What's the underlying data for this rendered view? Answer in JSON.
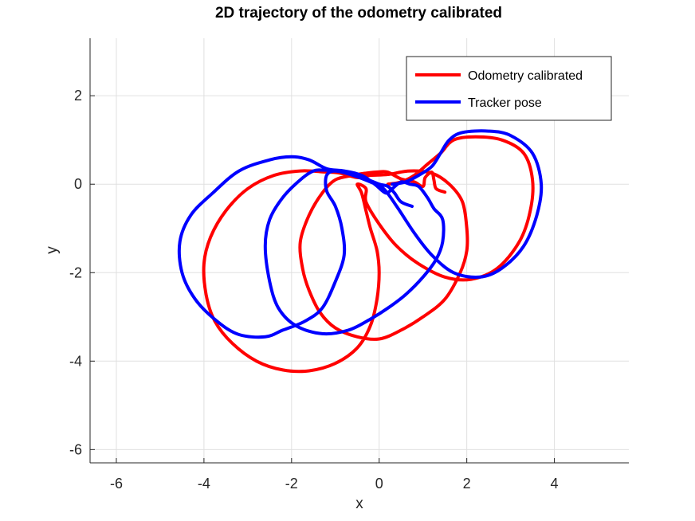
{
  "chart_data": {
    "type": "line",
    "title": "2D trajectory of the odometry calibrated",
    "xlabel": "x",
    "ylabel": "y",
    "xlim": [
      -6.6,
      5.7
    ],
    "ylim": [
      -6.3,
      3.3
    ],
    "xticks": [
      -6,
      -4,
      -2,
      0,
      2,
      4
    ],
    "yticks": [
      -6,
      -4,
      -2,
      0,
      2
    ],
    "xtick_labels": [
      "-6",
      "-4",
      "-2",
      "0",
      "2",
      "4"
    ],
    "ytick_labels": [
      "-6",
      "-4",
      "-2",
      "0",
      "2"
    ],
    "grid": true,
    "legend_position": "top-right",
    "series": [
      {
        "name": "Odometry calibrated",
        "color": "#ff0000",
        "points": [
          [
            1.5,
            -0.18
          ],
          [
            1.3,
            -0.1
          ],
          [
            1.25,
            0.1
          ],
          [
            1.2,
            0.27
          ],
          [
            1.05,
            0.15
          ],
          [
            1.0,
            -0.05
          ],
          [
            0.8,
            0.05
          ],
          [
            0.5,
            0.12
          ],
          [
            0.2,
            0.27
          ],
          [
            0.0,
            0.28
          ],
          [
            -0.3,
            0.25
          ],
          [
            -0.6,
            0.2
          ],
          [
            -1.0,
            0.1
          ],
          [
            -1.3,
            -0.2
          ],
          [
            -1.6,
            -0.7
          ],
          [
            -1.8,
            -1.3
          ],
          [
            -1.75,
            -1.9
          ],
          [
            -1.6,
            -2.4
          ],
          [
            -1.35,
            -2.9
          ],
          [
            -1.0,
            -3.25
          ],
          [
            -0.5,
            -3.45
          ],
          [
            0.0,
            -3.5
          ],
          [
            0.5,
            -3.3
          ],
          [
            1.0,
            -3.0
          ],
          [
            1.5,
            -2.6
          ],
          [
            1.85,
            -2.0
          ],
          [
            2.0,
            -1.5
          ],
          [
            2.0,
            -1.0
          ],
          [
            1.9,
            -0.4
          ],
          [
            1.6,
            0.0
          ],
          [
            1.2,
            0.25
          ],
          [
            0.7,
            0.3
          ],
          [
            0.2,
            0.22
          ],
          [
            -0.2,
            0.2
          ],
          [
            -0.5,
            0.15
          ],
          [
            -0.9,
            0.25
          ],
          [
            -1.3,
            0.28
          ],
          [
            -1.8,
            0.3
          ],
          [
            -2.4,
            0.2
          ],
          [
            -3.0,
            -0.1
          ],
          [
            -3.5,
            -0.6
          ],
          [
            -3.85,
            -1.2
          ],
          [
            -4.0,
            -1.8
          ],
          [
            -3.95,
            -2.5
          ],
          [
            -3.75,
            -3.1
          ],
          [
            -3.35,
            -3.6
          ],
          [
            -2.8,
            -4.0
          ],
          [
            -2.2,
            -4.2
          ],
          [
            -1.6,
            -4.22
          ],
          [
            -1.0,
            -4.05
          ],
          [
            -0.5,
            -3.7
          ],
          [
            -0.2,
            -3.2
          ],
          [
            -0.05,
            -2.6
          ],
          [
            0.0,
            -2.0
          ],
          [
            -0.05,
            -1.5
          ],
          [
            -0.2,
            -1.0
          ],
          [
            -0.3,
            -0.6
          ],
          [
            -0.4,
            -0.2
          ],
          [
            -0.5,
            0.0
          ],
          [
            -0.3,
            -0.1
          ],
          [
            -0.3,
            -0.4
          ],
          [
            0.0,
            -0.9
          ],
          [
            0.4,
            -1.4
          ],
          [
            0.9,
            -1.8
          ],
          [
            1.5,
            -2.1
          ],
          [
            2.1,
            -2.15
          ],
          [
            2.7,
            -1.9
          ],
          [
            3.2,
            -1.3
          ],
          [
            3.45,
            -0.6
          ],
          [
            3.5,
            0.1
          ],
          [
            3.3,
            0.7
          ],
          [
            2.8,
            1.0
          ],
          [
            2.2,
            1.07
          ],
          [
            1.7,
            1.0
          ],
          [
            1.4,
            0.7
          ],
          [
            1.1,
            0.45
          ],
          [
            0.8,
            0.2
          ],
          [
            0.5,
            0.05
          ],
          [
            0.2,
            0.0
          ]
        ]
      },
      {
        "name": "Tracker pose",
        "color": "#0000ff",
        "points": [
          [
            0.75,
            -0.5
          ],
          [
            0.5,
            -0.4
          ],
          [
            0.35,
            -0.2
          ],
          [
            0.2,
            -0.05
          ],
          [
            0.0,
            0.0
          ],
          [
            -0.3,
            0.12
          ],
          [
            -0.7,
            0.25
          ],
          [
            -1.0,
            0.3
          ],
          [
            -1.3,
            0.32
          ],
          [
            -1.5,
            0.3
          ],
          [
            -1.8,
            0.1
          ],
          [
            -2.2,
            -0.3
          ],
          [
            -2.5,
            -0.8
          ],
          [
            -2.6,
            -1.4
          ],
          [
            -2.5,
            -2.2
          ],
          [
            -2.3,
            -2.8
          ],
          [
            -1.9,
            -3.2
          ],
          [
            -1.3,
            -3.38
          ],
          [
            -0.7,
            -3.3
          ],
          [
            -0.2,
            -3.05
          ],
          [
            0.2,
            -2.8
          ],
          [
            0.6,
            -2.5
          ],
          [
            1.0,
            -2.1
          ],
          [
            1.3,
            -1.7
          ],
          [
            1.45,
            -1.3
          ],
          [
            1.45,
            -0.8
          ],
          [
            1.25,
            -0.55
          ],
          [
            1.1,
            -0.3
          ],
          [
            0.9,
            -0.05
          ],
          [
            0.7,
            0.0
          ],
          [
            0.5,
            0.05
          ],
          [
            0.3,
            -0.1
          ],
          [
            0.15,
            -0.2
          ],
          [
            -0.1,
            0.0
          ],
          [
            -0.4,
            0.2
          ],
          [
            -0.8,
            0.3
          ],
          [
            -1.2,
            0.35
          ],
          [
            -1.6,
            0.55
          ],
          [
            -2.0,
            0.62
          ],
          [
            -2.5,
            0.55
          ],
          [
            -3.2,
            0.3
          ],
          [
            -3.8,
            -0.2
          ],
          [
            -4.3,
            -0.7
          ],
          [
            -4.55,
            -1.3
          ],
          [
            -4.5,
            -2.0
          ],
          [
            -4.2,
            -2.6
          ],
          [
            -3.7,
            -3.1
          ],
          [
            -3.2,
            -3.4
          ],
          [
            -2.6,
            -3.45
          ],
          [
            -2.2,
            -3.3
          ],
          [
            -1.7,
            -3.1
          ],
          [
            -1.3,
            -2.8
          ],
          [
            -1.0,
            -2.2
          ],
          [
            -0.8,
            -1.6
          ],
          [
            -0.85,
            -1.0
          ],
          [
            -1.0,
            -0.5
          ],
          [
            -1.2,
            -0.15
          ],
          [
            -1.2,
            0.2
          ],
          [
            -1.0,
            0.3
          ],
          [
            -0.6,
            0.2
          ],
          [
            -0.2,
            0.05
          ],
          [
            0.1,
            -0.1
          ],
          [
            0.4,
            -0.5
          ],
          [
            0.8,
            -1.1
          ],
          [
            1.2,
            -1.6
          ],
          [
            1.7,
            -2.0
          ],
          [
            2.3,
            -2.1
          ],
          [
            2.8,
            -1.9
          ],
          [
            3.3,
            -1.4
          ],
          [
            3.6,
            -0.7
          ],
          [
            3.7,
            0.0
          ],
          [
            3.5,
            0.7
          ],
          [
            3.0,
            1.1
          ],
          [
            2.5,
            1.2
          ],
          [
            1.9,
            1.17
          ],
          [
            1.6,
            1.0
          ],
          [
            1.4,
            0.7
          ],
          [
            1.2,
            0.4
          ],
          [
            0.9,
            0.2
          ],
          [
            0.6,
            0.05
          ],
          [
            0.3,
            0.0
          ]
        ]
      }
    ]
  }
}
